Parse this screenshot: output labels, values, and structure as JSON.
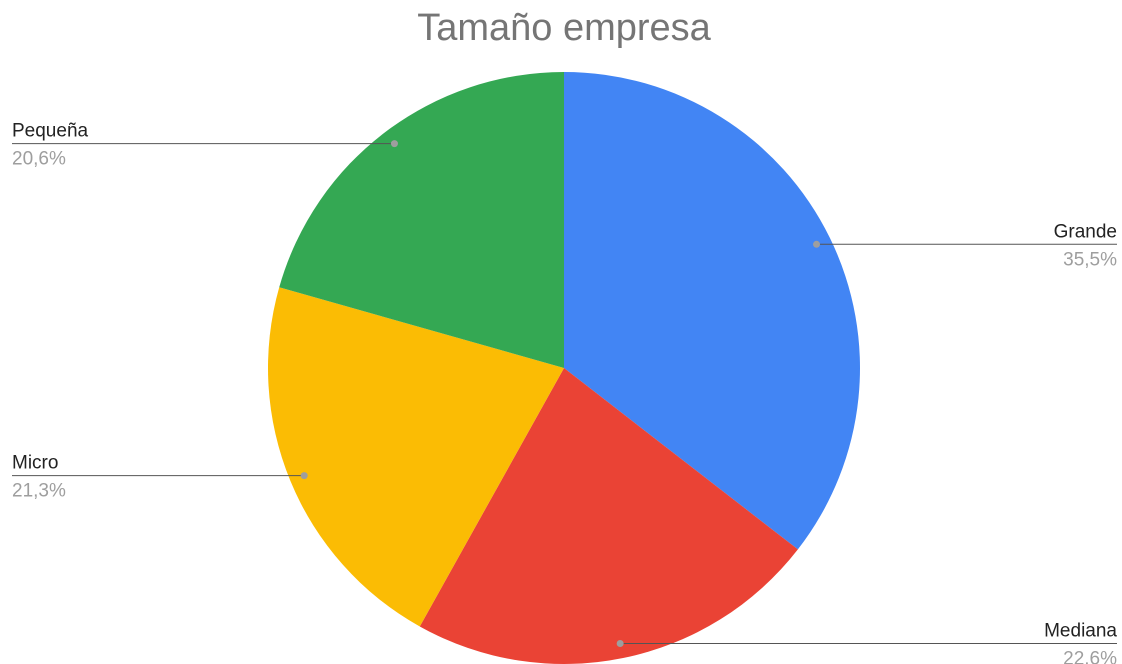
{
  "chart_data": {
    "type": "pie",
    "title": "Tamaño empresa",
    "categories": [
      "Grande",
      "Mediana",
      "Micro",
      "Pequeña"
    ],
    "values": [
      35.5,
      22.6,
      21.3,
      20.6
    ],
    "value_labels": [
      "35,5%",
      "22,6%",
      "21,3%",
      "20,6%"
    ],
    "colors": [
      "#4285f4",
      "#ea4335",
      "#fbbc04",
      "#34a853"
    ]
  }
}
